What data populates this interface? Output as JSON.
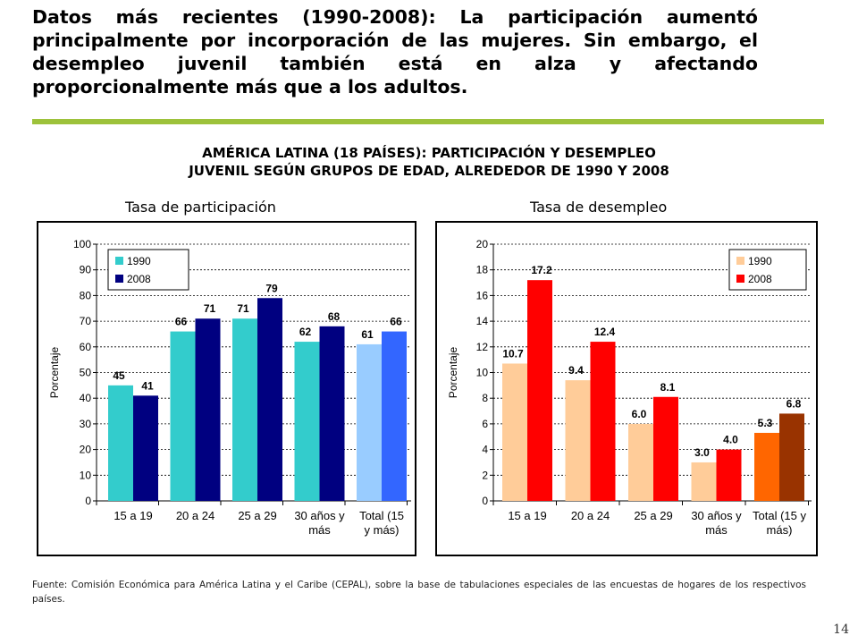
{
  "heading": "Datos más recientes (1990-2008): La participación aumentó principalmente por incorporación de las mujeres. Sin embargo, el desempleo juvenil también está en alza y afectando proporcionalmente más que a los adultos.",
  "chart_title_line1": "AMÉRICA LATINA (18 PAÍSES): PARTICIPACIÓN Y DESEMPLEO",
  "chart_title_line2": "JUVENIL SEGÚN GRUPOS DE EDAD, ALREDEDOR DE 1990 Y 2008",
  "source": "Fuente: Comisión Económica para América Latina y el Caribe (CEPAL), sobre la base de tabulaciones especiales de las encuestas de hogares de los respectivos países.",
  "page_number": "14",
  "colors": {
    "rule": "#9dc23b",
    "part_1990": "#33cccc",
    "part_2008": "#000080",
    "part_total_1990": "#99ccff",
    "part_total_2008": "#3366ff",
    "unemp_1990": "#ffcc99",
    "unemp_2008": "#ff0000",
    "unemp_total_1990": "#ff6600",
    "unemp_total_2008": "#993300"
  },
  "chart_data": [
    {
      "type": "bar",
      "title": "Tasa de participación",
      "ylabel": "Porcentaje",
      "xlabel": "",
      "ylim": [
        0,
        100
      ],
      "ytick_step": 10,
      "yticks": [
        "0",
        "10",
        "20",
        "30",
        "40",
        "50",
        "60",
        "70",
        "80",
        "90",
        "100"
      ],
      "grid": true,
      "legend_position": "top-left",
      "categories": [
        [
          "15 a 19"
        ],
        [
          "20 a 24"
        ],
        [
          "25 a 29"
        ],
        [
          "30 años y",
          "más"
        ],
        [
          "Total (15",
          "y más)"
        ]
      ],
      "series": [
        {
          "name": "1990",
          "values": [
            45,
            66,
            71,
            62,
            61
          ],
          "labels": [
            "45",
            "66",
            "71",
            "62",
            "61"
          ]
        },
        {
          "name": "2008",
          "values": [
            41,
            71,
            79,
            68,
            66
          ],
          "labels": [
            "41",
            "71",
            "79",
            "68",
            "66"
          ]
        }
      ]
    },
    {
      "type": "bar",
      "title": "Tasa de desempleo",
      "ylabel": "Porcentaje",
      "xlabel": "",
      "ylim": [
        0,
        20
      ],
      "ytick_step": 2,
      "yticks": [
        "0",
        "2",
        "4",
        "6",
        "8",
        "10",
        "12",
        "14",
        "16",
        "18",
        "20"
      ],
      "grid": true,
      "legend_position": "top-right",
      "categories": [
        [
          "15 a 19"
        ],
        [
          "20 a 24"
        ],
        [
          "25 a 29"
        ],
        [
          "30 años y",
          "más"
        ],
        [
          "Total (15 y",
          "más)"
        ]
      ],
      "series": [
        {
          "name": "1990",
          "values": [
            10.7,
            9.4,
            6.0,
            3.0,
            5.3
          ],
          "labels": [
            "10.7",
            "9.4",
            "6.0",
            "3.0",
            "5.3"
          ]
        },
        {
          "name": "2008",
          "values": [
            17.2,
            12.4,
            8.1,
            4.0,
            6.8
          ],
          "labels": [
            "17.2",
            "12.4",
            "8.1",
            "4.0",
            "6.8"
          ]
        }
      ]
    }
  ]
}
